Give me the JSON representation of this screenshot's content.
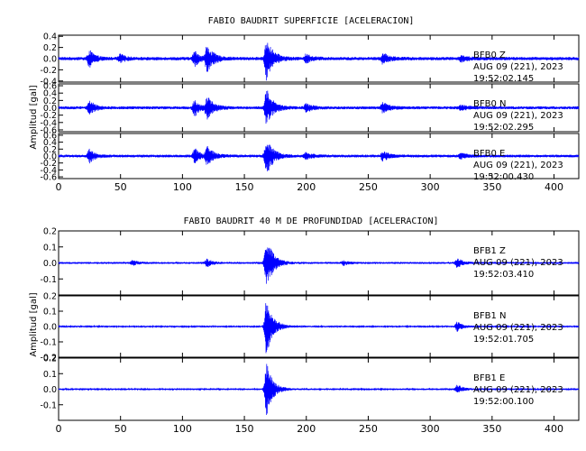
{
  "chart_data": [
    {
      "type": "line",
      "title": "FABIO BAUDRIT SUPERFICIE [ACELERACION]",
      "ylabel": "Amplitud [gal]",
      "xlabel": "",
      "xlim": [
        0,
        420
      ],
      "x_ticks": [
        0,
        50,
        100,
        150,
        200,
        250,
        300,
        350,
        400
      ],
      "color": "#0000ff",
      "channels": [
        {
          "station": "BFB0",
          "component": "Z",
          "date": "AUG 09 (221), 2023",
          "time": "19:52:02.145",
          "ylim": [
            -0.42,
            0.42
          ],
          "y_ticks": [
            "0.4",
            "0.2",
            "0.0",
            "-0.2",
            "-0.4"
          ],
          "base_amplitude": 0.03,
          "bursts": [
            {
              "t": 25,
              "a": 0.15,
              "w": 4
            },
            {
              "t": 50,
              "a": 0.07,
              "w": 4
            },
            {
              "t": 110,
              "a": 0.13,
              "w": 4
            },
            {
              "t": 120,
              "a": 0.23,
              "w": 5
            },
            {
              "t": 168,
              "a": 0.37,
              "w": 5
            },
            {
              "t": 200,
              "a": 0.07,
              "w": 5
            },
            {
              "t": 262,
              "a": 0.09,
              "w": 5
            },
            {
              "t": 325,
              "a": 0.05,
              "w": 5
            }
          ]
        },
        {
          "station": "BFB0",
          "component": "N",
          "date": "AUG 09 (221), 2023",
          "time": "19:52:02.295",
          "ylim": [
            -0.65,
            0.65
          ],
          "y_ticks": [
            "0.6",
            "0.4",
            "0.2",
            "0.0",
            "-0.2",
            "-0.4",
            "-0.6"
          ],
          "base_amplitude": 0.04,
          "bursts": [
            {
              "t": 25,
              "a": 0.2,
              "w": 4
            },
            {
              "t": 110,
              "a": 0.22,
              "w": 4
            },
            {
              "t": 120,
              "a": 0.28,
              "w": 5
            },
            {
              "t": 168,
              "a": 0.5,
              "w": 5
            },
            {
              "t": 200,
              "a": 0.1,
              "w": 5
            },
            {
              "t": 262,
              "a": 0.13,
              "w": 5
            },
            {
              "t": 325,
              "a": 0.07,
              "w": 5
            }
          ]
        },
        {
          "station": "BFB0",
          "component": "E",
          "date": "AUG 09 (221), 2023",
          "time": "19:52:00.430",
          "ylim": [
            -0.65,
            0.65
          ],
          "y_ticks": [
            "0.6",
            "0.4",
            "0.2",
            "0.0",
            "-0.2",
            "-0.4",
            "-0.6"
          ],
          "base_amplitude": 0.04,
          "bursts": [
            {
              "t": 25,
              "a": 0.2,
              "w": 4
            },
            {
              "t": 110,
              "a": 0.22,
              "w": 4
            },
            {
              "t": 120,
              "a": 0.26,
              "w": 5
            },
            {
              "t": 168,
              "a": 0.55,
              "w": 5
            },
            {
              "t": 200,
              "a": 0.1,
              "w": 5
            },
            {
              "t": 262,
              "a": 0.13,
              "w": 5
            },
            {
              "t": 325,
              "a": 0.07,
              "w": 5
            }
          ]
        }
      ]
    },
    {
      "type": "line",
      "title": "FABIO BAUDRIT 40 M DE PROFUNDIDAD [ACELERACION]",
      "ylabel": "Amplitud [gal]",
      "xlabel": "",
      "xlim": [
        0,
        420
      ],
      "x_ticks": [
        0,
        50,
        100,
        150,
        200,
        250,
        300,
        350,
        400
      ],
      "color": "#0000ff",
      "channels": [
        {
          "station": "BFB1",
          "component": "Z",
          "date": "AUG 09 (221), 2023",
          "time": "19:52:03.410",
          "ylim": [
            -0.2,
            0.2
          ],
          "y_ticks": [
            "0.2",
            "0.1",
            "0.0",
            "-0.1"
          ],
          "base_amplitude": 0.006,
          "bursts": [
            {
              "t": 60,
              "a": 0.015,
              "w": 4
            },
            {
              "t": 120,
              "a": 0.025,
              "w": 4
            },
            {
              "t": 168,
              "a": 0.17,
              "w": 5
            },
            {
              "t": 230,
              "a": 0.015,
              "w": 4
            },
            {
              "t": 322,
              "a": 0.03,
              "w": 4
            }
          ]
        },
        {
          "station": "BFB1",
          "component": "N",
          "date": "AUG 09 (221), 2023",
          "time": "19:52:01.705",
          "ylim": [
            -0.2,
            0.2
          ],
          "y_ticks": [
            "0.2",
            "0.1",
            "0.0",
            "-0.1",
            "-0.2"
          ],
          "base_amplitude": 0.005,
          "bursts": [
            {
              "t": 168,
              "a": 0.19,
              "w": 5
            },
            {
              "t": 322,
              "a": 0.03,
              "w": 4
            }
          ]
        },
        {
          "station": "BFB1",
          "component": "E",
          "date": "AUG 09 (221), 2023",
          "time": "19:52:00.100",
          "ylim": [
            -0.2,
            0.2
          ],
          "y_ticks": [
            "0.2",
            "0.1",
            "0.0",
            "-0.1"
          ],
          "base_amplitude": 0.005,
          "bursts": [
            {
              "t": 168,
              "a": 0.17,
              "w": 5
            },
            {
              "t": 322,
              "a": 0.03,
              "w": 4
            }
          ]
        }
      ]
    }
  ]
}
